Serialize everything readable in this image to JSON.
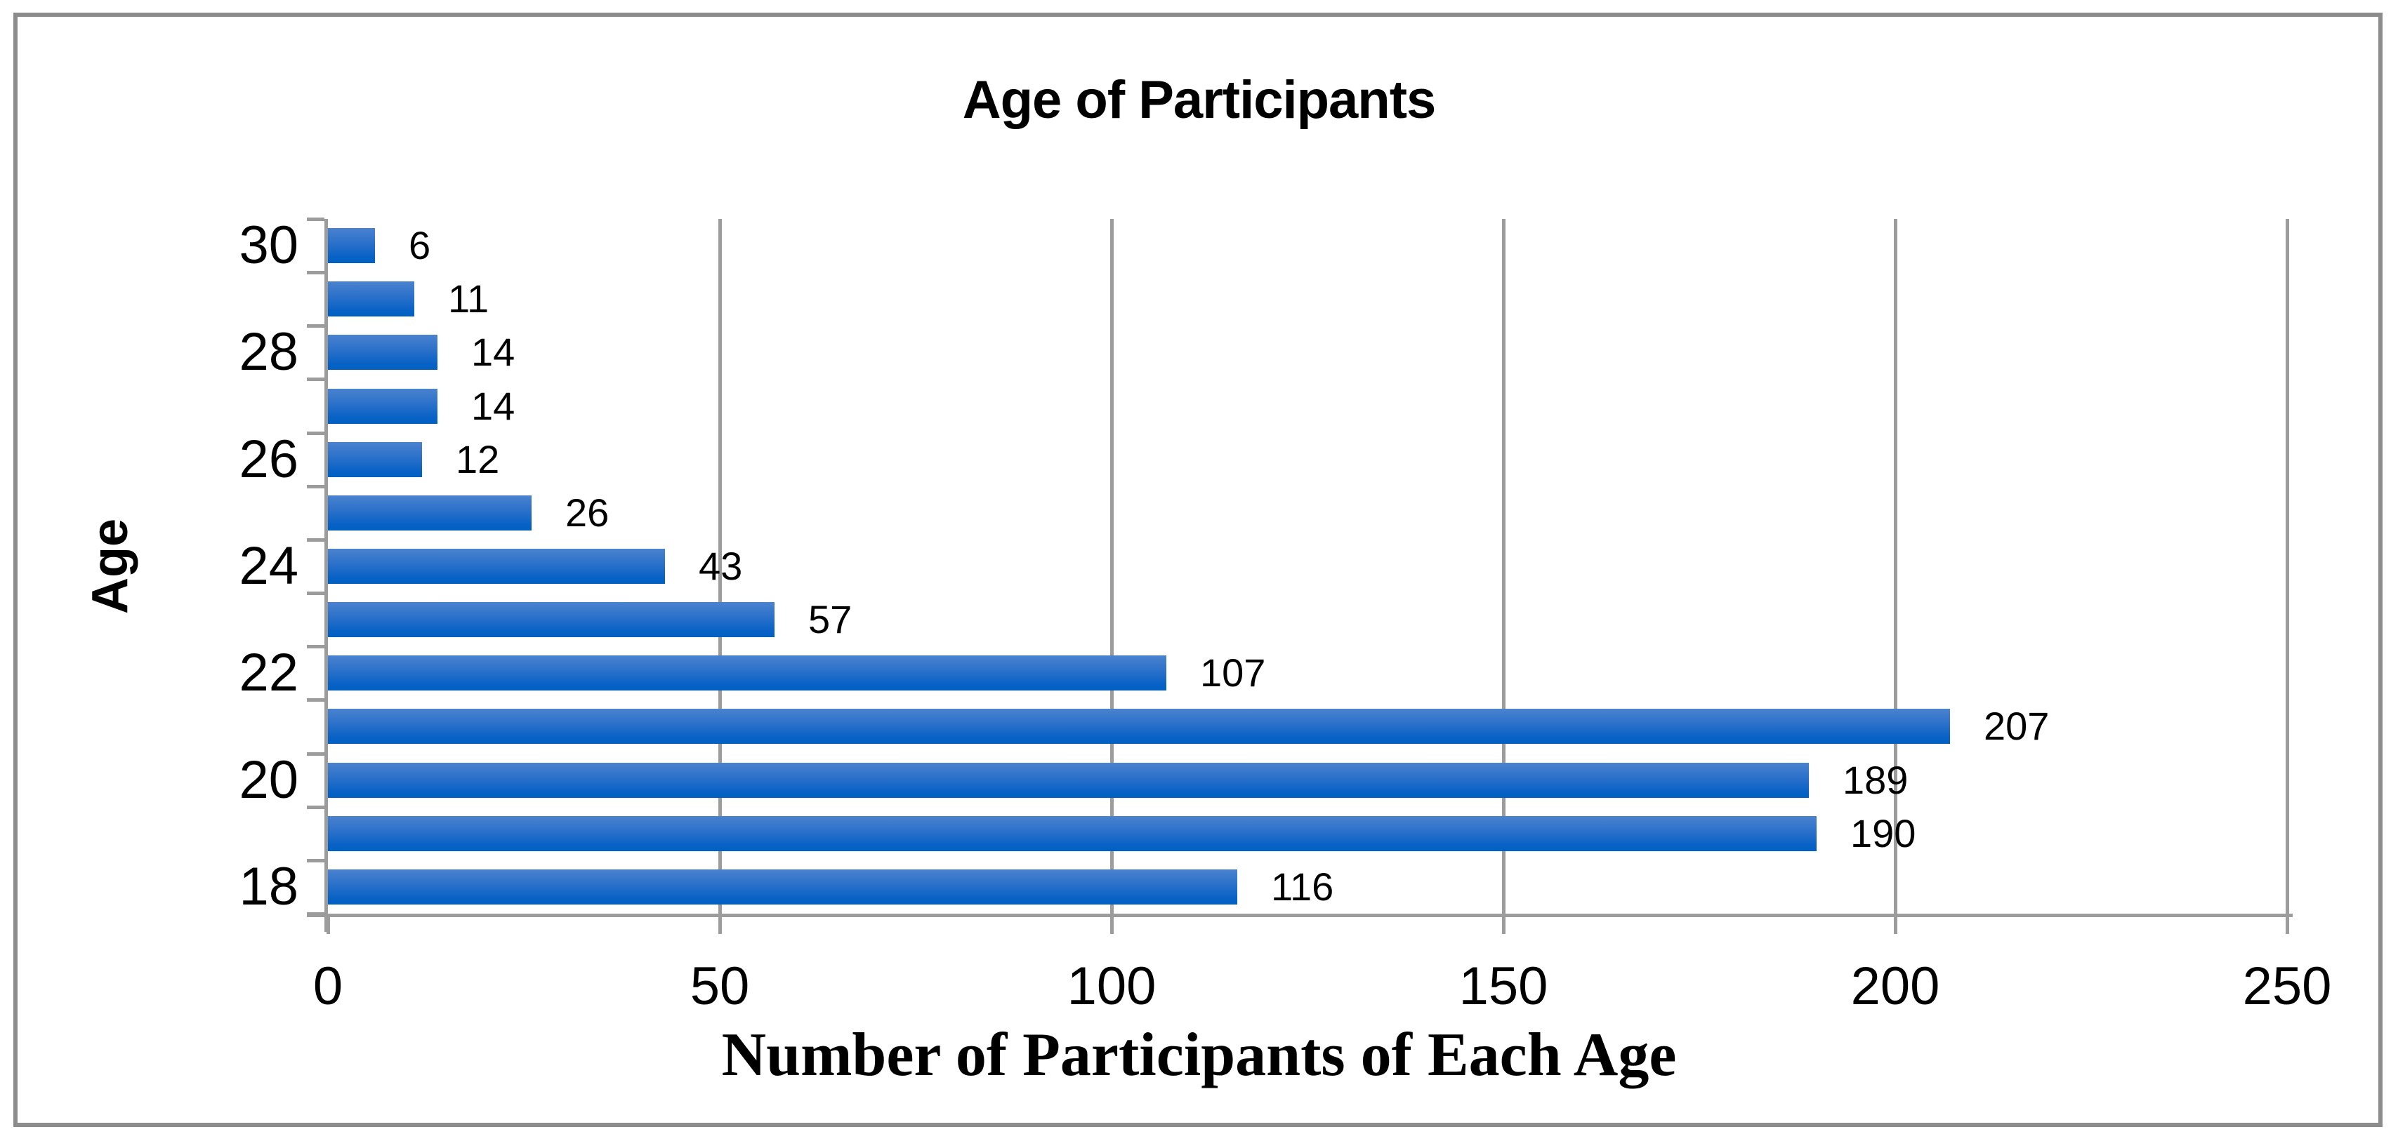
{
  "chart_data": {
    "type": "bar",
    "orientation": "horizontal",
    "title": "Age of Participants",
    "xlabel": "Number of Participants of Each Age",
    "ylabel": "Age",
    "categories": [
      30,
      29,
      28,
      27,
      26,
      25,
      24,
      23,
      22,
      21,
      20,
      19,
      18
    ],
    "values": [
      6,
      11,
      14,
      14,
      12,
      26,
      43,
      57,
      107,
      207,
      189,
      190,
      116
    ],
    "data_labels_shown": true,
    "y_axis_tick_labels": [
      "30",
      "28",
      "26",
      "24",
      "22",
      "20",
      "18"
    ],
    "x_axis_tick_labels": [
      "0",
      "50",
      "100",
      "150",
      "200",
      "250"
    ],
    "x_ticks": [
      0,
      50,
      100,
      150,
      200,
      250
    ],
    "xlim": [
      0,
      250
    ],
    "grid": "vertical gridlines at 50-unit intervals",
    "legend": "none",
    "colors": {
      "bar_gradient_top": "#4a82ce",
      "bar_gradient_bottom": "#0060c2",
      "axis_gray": "#9c9c9c",
      "frame_border_gray": "#8c8c8c",
      "text": "#000000",
      "background": "#ffffff"
    }
  }
}
